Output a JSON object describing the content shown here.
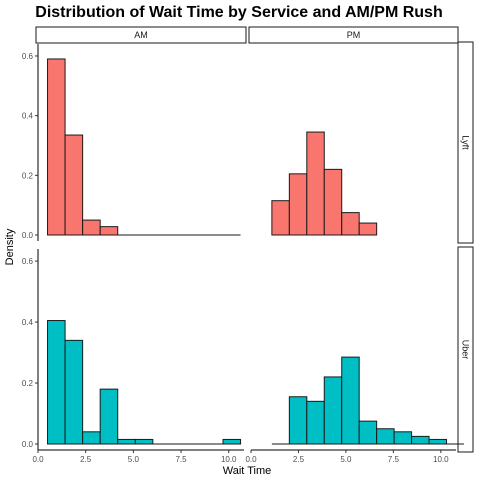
{
  "chart_data": {
    "type": "bar",
    "title": "Distribution of Wait Time by Service and AM/PM Rush",
    "xlabel": "Wait Time",
    "ylabel": "Density",
    "xlim": [
      0,
      10.8
    ],
    "ylim": [
      0,
      0.62
    ],
    "x_ticks": [
      0,
      2.5,
      5,
      7.5,
      10
    ],
    "x_tick_labels": [
      "0.0",
      "2.5",
      "5.0",
      "7.5",
      "10.0"
    ],
    "y_ticks": [
      0,
      0.2,
      0.4,
      0.6
    ],
    "y_tick_labels": [
      "0.0",
      "0.2",
      "0.4",
      "0.6"
    ],
    "col_facets": [
      "AM",
      "PM"
    ],
    "row_facets": [
      "Lyft",
      "Uber"
    ],
    "grid": false,
    "bin_width": 0.92,
    "colors": {
      "Lyft": "#F8766D",
      "Uber": "#00BFC4"
    },
    "panels": [
      {
        "row": "Lyft",
        "col": "AM",
        "bins": [
          0.5,
          1.42,
          2.34,
          3.26,
          4.18,
          5.1,
          6.02,
          6.94,
          7.86,
          8.78,
          9.7
        ],
        "values": [
          0.59,
          0.335,
          0.05,
          0.028,
          0,
          0,
          0,
          0,
          0,
          0,
          0
        ]
      },
      {
        "row": "Lyft",
        "col": "PM",
        "bins": [
          1.1,
          2.02,
          2.94,
          3.86,
          4.78,
          5.7
        ],
        "values": [
          0.115,
          0.205,
          0.345,
          0.22,
          0.075,
          0.04
        ]
      },
      {
        "row": "Uber",
        "col": "AM",
        "bins": [
          0.5,
          1.42,
          2.34,
          3.26,
          4.18,
          5.1,
          6.02,
          6.94,
          7.86,
          8.78,
          9.7
        ],
        "values": [
          0.405,
          0.34,
          0.04,
          0.18,
          0.015,
          0.015,
          0,
          0,
          0,
          0,
          0.015
        ]
      },
      {
        "row": "Uber",
        "col": "PM",
        "bins": [
          1.1,
          2.02,
          2.94,
          3.86,
          4.78,
          5.7,
          6.62,
          7.54,
          8.46,
          9.38,
          10.3
        ],
        "values": [
          0,
          0.155,
          0.14,
          0.22,
          0.285,
          0.075,
          0.05,
          0.04,
          0.025,
          0.015,
          0
        ]
      }
    ]
  }
}
